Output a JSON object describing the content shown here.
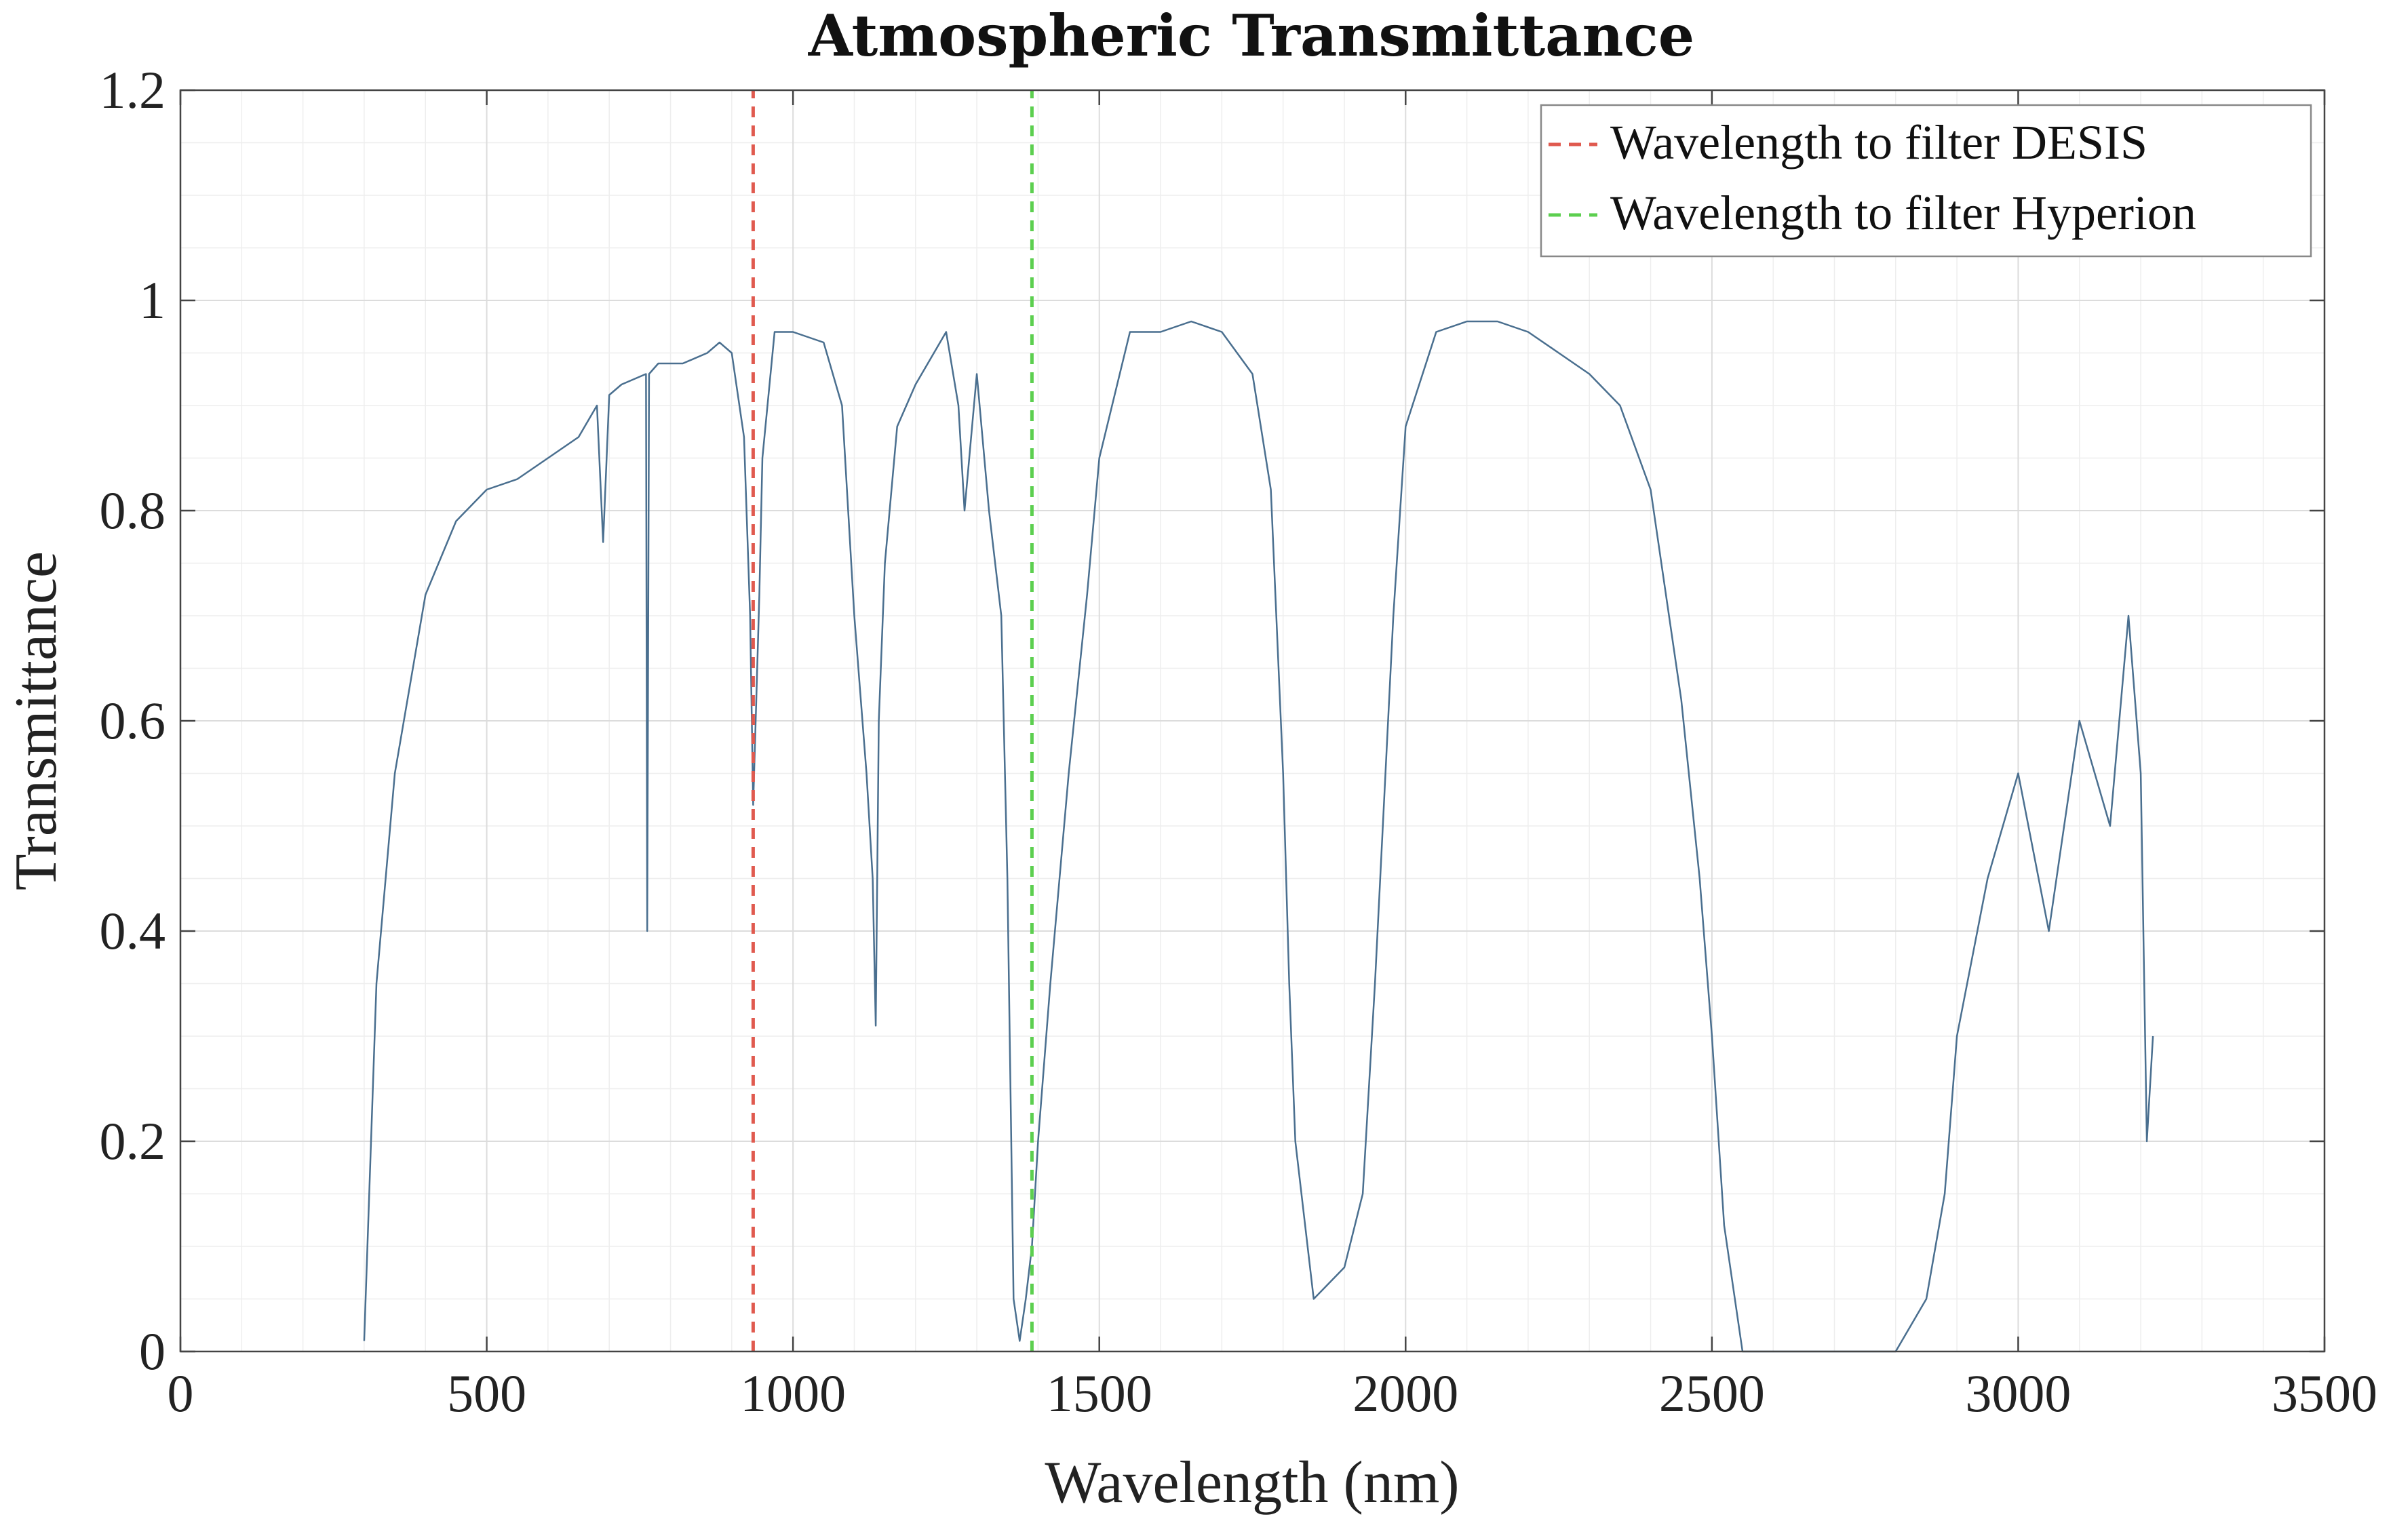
{
  "chart_data": {
    "type": "line",
    "title": "Atmospheric Transmittance",
    "xlabel": "Wavelength (nm)",
    "ylabel": "Transmittance",
    "xlim": [
      0,
      3500
    ],
    "ylim": [
      0,
      1.2
    ],
    "grid": true,
    "minor_grid": true,
    "legend_position": "top-right",
    "x_ticks": [
      0,
      500,
      1000,
      1500,
      2000,
      2500,
      3000,
      3500
    ],
    "x_tick_labels": [
      "0",
      "500",
      "1000",
      "1500",
      "2000",
      "2500",
      "3000",
      "3500"
    ],
    "y_ticks": [
      0,
      0.2,
      0.4,
      0.6,
      0.8,
      1,
      1.2
    ],
    "y_tick_labels": [
      "0",
      "0.2",
      "0.4",
      "0.6",
      "0.8",
      "1",
      "1.2"
    ],
    "series": [
      {
        "name": "Transmittance",
        "color": "#4a6f8f",
        "line_style": "solid",
        "x": [
          300,
          320,
          350,
          400,
          450,
          500,
          550,
          600,
          650,
          680,
          690,
          700,
          720,
          760,
          762,
          765,
          780,
          820,
          860,
          880,
          900,
          920,
          930,
          935,
          940,
          945,
          950,
          970,
          1000,
          1050,
          1080,
          1100,
          1120,
          1130,
          1135,
          1140,
          1150,
          1170,
          1200,
          1250,
          1270,
          1280,
          1300,
          1320,
          1340,
          1350,
          1360,
          1370,
          1380,
          1390,
          1400,
          1420,
          1450,
          1480,
          1500,
          1550,
          1600,
          1650,
          1700,
          1750,
          1780,
          1800,
          1810,
          1820,
          1850,
          1900,
          1930,
          1950,
          1980,
          2000,
          2050,
          2100,
          2150,
          2200,
          2250,
          2300,
          2350,
          2400,
          2450,
          2480,
          2500,
          2520,
          2550,
          2600,
          2700,
          2800,
          2850,
          2880,
          2900,
          2950,
          3000,
          3050,
          3100,
          3150,
          3180,
          3200,
          3210,
          3220
        ],
        "y": [
          0.01,
          0.35,
          0.55,
          0.72,
          0.79,
          0.82,
          0.83,
          0.85,
          0.87,
          0.9,
          0.77,
          0.91,
          0.92,
          0.93,
          0.4,
          0.93,
          0.94,
          0.94,
          0.95,
          0.96,
          0.95,
          0.87,
          0.7,
          0.52,
          0.62,
          0.72,
          0.85,
          0.97,
          0.97,
          0.96,
          0.9,
          0.7,
          0.55,
          0.45,
          0.31,
          0.6,
          0.75,
          0.88,
          0.92,
          0.97,
          0.9,
          0.8,
          0.93,
          0.8,
          0.7,
          0.45,
          0.05,
          0.01,
          0.05,
          0.1,
          0.2,
          0.35,
          0.55,
          0.72,
          0.85,
          0.97,
          0.97,
          0.98,
          0.97,
          0.93,
          0.82,
          0.55,
          0.35,
          0.2,
          0.05,
          0.08,
          0.15,
          0.35,
          0.7,
          0.88,
          0.97,
          0.98,
          0.98,
          0.97,
          0.95,
          0.93,
          0.9,
          0.82,
          0.62,
          0.45,
          0.3,
          0.12,
          0.0,
          0.0,
          0.0,
          0.0,
          0.05,
          0.15,
          0.3,
          0.45,
          0.55,
          0.4,
          0.6,
          0.5,
          0.7,
          0.55,
          0.2,
          0.3
        ]
      },
      {
        "name": "Wavelength to filter DESIS",
        "color": "#e05a4f",
        "line_style": "dashed",
        "x": [
          935,
          935
        ],
        "y": [
          0,
          1.2
        ]
      },
      {
        "name": "Wavelength to filter Hyperion",
        "color": "#5ccf4f",
        "line_style": "dashed",
        "x": [
          1390,
          1390
        ],
        "y": [
          0,
          1.2
        ]
      }
    ]
  }
}
